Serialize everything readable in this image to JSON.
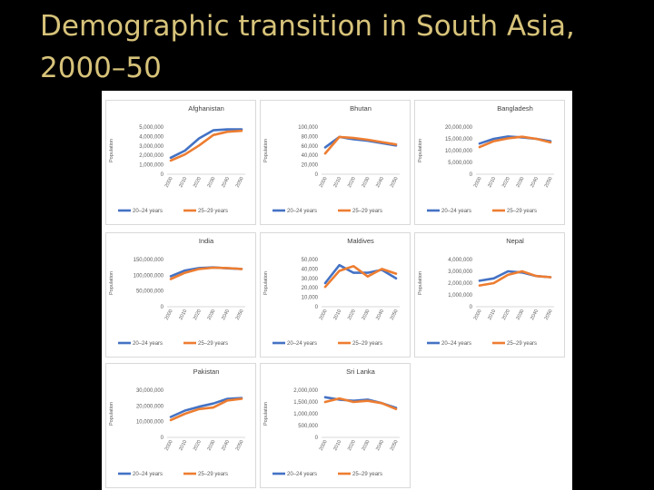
{
  "slide": {
    "title": "Demographic transition in South Asia, 2000–50"
  },
  "colors": {
    "series_1": "#4472c4",
    "series_2": "#ed7d31",
    "title_text": "#d7c37a",
    "background": "#000000"
  },
  "chart_data": [
    {
      "type": "line",
      "title": "Afghanistan",
      "ylabel": "Population",
      "x": [
        "2000",
        "2010",
        "2020",
        "2030",
        "2040",
        "2050"
      ],
      "yticks": [
        "5,000,000",
        "4,000,000",
        "3,000,000",
        "2,000,000",
        "1,000,000",
        "0"
      ],
      "ylim": [
        0,
        5000000
      ],
      "series": [
        {
          "name": "20–24 years",
          "values": [
            1750000,
            2500000,
            3800000,
            4650000,
            4750000,
            4750000
          ]
        },
        {
          "name": "25–29 years",
          "values": [
            1450000,
            2100000,
            3050000,
            4150000,
            4500000,
            4600000
          ]
        }
      ]
    },
    {
      "type": "line",
      "title": "Bhutan",
      "ylabel": "Population",
      "x": [
        "2000",
        "2010",
        "2020",
        "2030",
        "2040",
        "2050"
      ],
      "yticks": [
        "100,000",
        "80,000",
        "60,000",
        "40,000",
        "20,000",
        "0"
      ],
      "ylim": [
        0,
        100000
      ],
      "series": [
        {
          "name": "20–24 years",
          "values": [
            57000,
            79000,
            74000,
            71000,
            66000,
            61000
          ]
        },
        {
          "name": "25–29 years",
          "values": [
            44000,
            79000,
            77000,
            73000,
            68000,
            63000
          ]
        }
      ]
    },
    {
      "type": "line",
      "title": "Bangladesh",
      "ylabel": "Population",
      "x": [
        "2000",
        "2010",
        "2020",
        "2030",
        "2040",
        "2050"
      ],
      "yticks": [
        "20,000,000",
        "15,000,000",
        "10,000,000",
        "5,000,000",
        "0"
      ],
      "ylim": [
        0,
        20000000
      ],
      "series": [
        {
          "name": "20–24 years",
          "values": [
            13000000,
            15000000,
            16000000,
            15600000,
            15000000,
            14000000
          ]
        },
        {
          "name": "25–29 years",
          "values": [
            11500000,
            14000000,
            15200000,
            15900000,
            15000000,
            13500000
          ]
        }
      ]
    },
    {
      "type": "line",
      "title": "India",
      "ylabel": "Population",
      "x": [
        "2000",
        "2010",
        "2020",
        "2030",
        "2040",
        "2050"
      ],
      "yticks": [
        "150,000,000",
        "100,000,000",
        "50,000,000",
        "0"
      ],
      "ylim": [
        0,
        150000000
      ],
      "series": [
        {
          "name": "20–24 years",
          "values": [
            97000000,
            115000000,
            123000000,
            125000000,
            122000000,
            120000000
          ]
        },
        {
          "name": "25–29 years",
          "values": [
            88000000,
            108000000,
            120000000,
            124000000,
            123000000,
            120000000
          ]
        }
      ]
    },
    {
      "type": "line",
      "title": "Maldives",
      "ylabel": "Population",
      "x": [
        "2000",
        "2010",
        "2020",
        "2030",
        "2040",
        "2050"
      ],
      "yticks": [
        "50,000",
        "40,000",
        "30,000",
        "20,000",
        "10,000",
        "0"
      ],
      "ylim": [
        0,
        50000
      ],
      "series": [
        {
          "name": "20–24 years",
          "values": [
            25000,
            44000,
            36000,
            36000,
            39000,
            30000
          ]
        },
        {
          "name": "25–29 years",
          "values": [
            21000,
            38000,
            43000,
            32000,
            40000,
            35000
          ]
        }
      ]
    },
    {
      "type": "line",
      "title": "Nepal",
      "ylabel": "Population",
      "x": [
        "2000",
        "2010",
        "2020",
        "2030",
        "2040",
        "2050"
      ],
      "yticks": [
        "4,000,000",
        "3,000,000",
        "2,000,000",
        "1,000,000",
        "0"
      ],
      "ylim": [
        0,
        4000000
      ],
      "series": [
        {
          "name": "20–24 years",
          "values": [
            2200000,
            2400000,
            3000000,
            2900000,
            2600000,
            2500000
          ]
        },
        {
          "name": "25–29 years",
          "values": [
            1800000,
            2000000,
            2700000,
            3000000,
            2600000,
            2500000
          ]
        }
      ]
    },
    {
      "type": "line",
      "title": "Pakistan",
      "ylabel": "Population",
      "x": [
        "2000",
        "2010",
        "2020",
        "2030",
        "2040",
        "2050"
      ],
      "yticks": [
        "30,000,000",
        "20,000,000",
        "10,000,000",
        "0"
      ],
      "ylim": [
        0,
        30000000
      ],
      "series": [
        {
          "name": "20–24 years",
          "values": [
            13000000,
            17000000,
            19500000,
            21500000,
            24500000,
            25000000
          ]
        },
        {
          "name": "25–29 years",
          "values": [
            11000000,
            15000000,
            18000000,
            19000000,
            23500000,
            24500000
          ]
        }
      ]
    },
    {
      "type": "line",
      "title": "Sri Lanka",
      "ylabel": "Population",
      "x": [
        "2000",
        "2010",
        "2020",
        "2030",
        "2040",
        "2050"
      ],
      "yticks": [
        "2,000,000",
        "1,500,000",
        "1,000,000",
        "500,000",
        "0"
      ],
      "ylim": [
        0,
        2000000
      ],
      "series": [
        {
          "name": "20–24 years",
          "values": [
            1700000,
            1600000,
            1550000,
            1600000,
            1450000,
            1250000
          ]
        },
        {
          "name": "25–29 years",
          "values": [
            1500000,
            1650000,
            1500000,
            1550000,
            1450000,
            1200000
          ]
        }
      ]
    }
  ]
}
